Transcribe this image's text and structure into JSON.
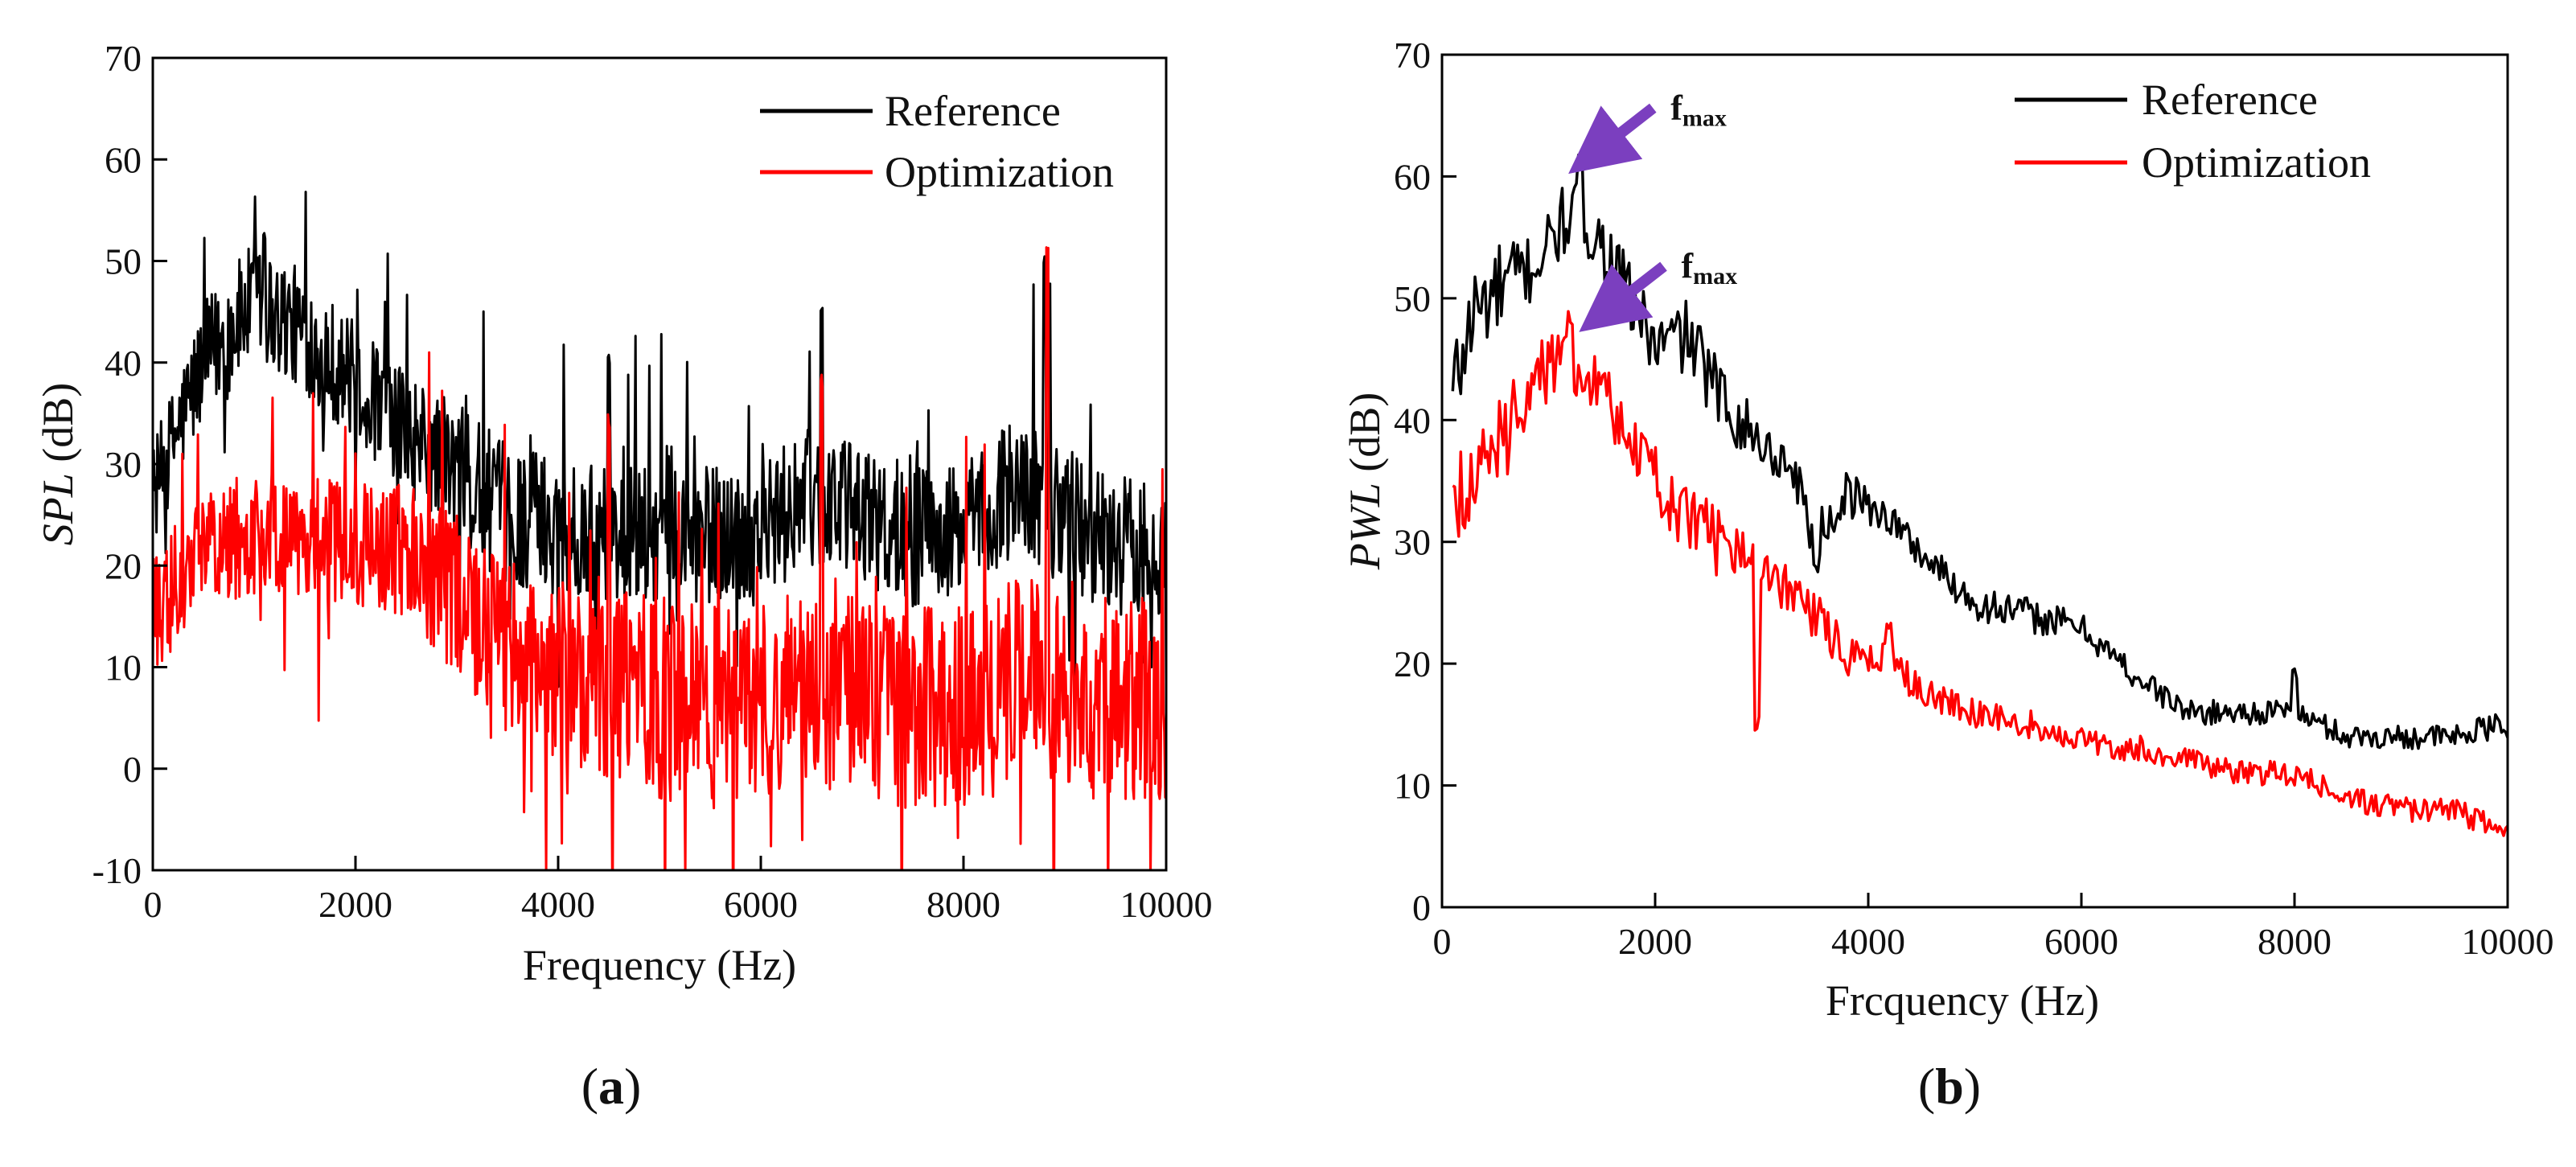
{
  "panels": [
    {
      "label_open": "(",
      "label_letter": "a",
      "label_close": ")"
    },
    {
      "label_open": "(",
      "label_letter": "b",
      "label_close": ")"
    }
  ],
  "chart_data": [
    {
      "type": "line",
      "title": "",
      "xlabel": "Frequency (Hz)",
      "ylabel_var": "SPL",
      "ylabel_unit": " (dB)",
      "xlim": [
        0,
        10000
      ],
      "ylim": [
        -10,
        70
      ],
      "xticks": [
        0,
        2000,
        4000,
        6000,
        8000,
        10000
      ],
      "yticks": [
        -10,
        0,
        10,
        20,
        30,
        40,
        50,
        60,
        70
      ],
      "grid": false,
      "legend_position": "top-right",
      "series": [
        {
          "name": "Reference",
          "color": "#000000",
          "style": "noisy",
          "x": [
            0,
            500,
            1000,
            1500,
            2000,
            2500,
            3000,
            3500,
            4000,
            4500,
            5000,
            5500,
            6000,
            6500,
            7000,
            7500,
            8000,
            8500,
            9000,
            9500,
            10000
          ],
          "y": [
            27,
            40,
            46,
            43,
            38,
            33,
            29,
            25,
            24,
            23,
            23,
            23,
            23,
            27,
            25,
            23,
            23,
            28,
            25,
            22,
            22
          ],
          "amplitude": [
            5,
            6,
            6,
            6,
            6,
            6,
            7,
            7,
            7,
            7,
            7,
            7,
            7,
            7,
            7,
            7,
            7,
            7,
            7,
            7,
            7
          ],
          "peaks": [
            [
              1100,
              53
            ],
            [
              4500,
              41
            ],
            [
              6600,
              46
            ],
            [
              8800,
              51
            ],
            [
              8850,
              48
            ]
          ]
        },
        {
          "name": "Optimization",
          "color": "#ff0000",
          "style": "noisy",
          "x": [
            0,
            500,
            1000,
            1500,
            2000,
            2500,
            3000,
            3500,
            4000,
            4500,
            5000,
            5500,
            6000,
            6500,
            7000,
            7500,
            8000,
            8500,
            9000,
            9500,
            10000
          ],
          "y": [
            15,
            22,
            23,
            23,
            22,
            21,
            17,
            12,
            10,
            9,
            7,
            6,
            6,
            8,
            7,
            6,
            6,
            9,
            7,
            7,
            7
          ],
          "amplitude": [
            6,
            6,
            6,
            6,
            6,
            7,
            8,
            9,
            9,
            10,
            10,
            10,
            10,
            10,
            10,
            10,
            10,
            10,
            10,
            10,
            10
          ],
          "peaks": [
            [
              6600,
              39
            ],
            [
              8830,
              52
            ],
            [
              4500,
              35
            ]
          ]
        }
      ]
    },
    {
      "type": "line",
      "title": "",
      "xlabel": "Frcquency (Hz)",
      "ylabel_var": "PWL",
      "ylabel_unit": " (dB)",
      "xlim": [
        0,
        10000
      ],
      "ylim": [
        0,
        70
      ],
      "xticks": [
        0,
        2000,
        4000,
        6000,
        8000,
        10000
      ],
      "yticks": [
        0,
        10,
        20,
        30,
        40,
        50,
        60,
        70
      ],
      "grid": false,
      "legend_position": "top-right",
      "annotations": [
        {
          "text_main": "f",
          "text_sub": "max",
          "x": 1300,
          "y": 61,
          "arrow_color": "#7b3fbf"
        },
        {
          "text_main": "f",
          "text_sub": "max",
          "x": 1400,
          "y": 48,
          "arrow_color": "#7b3fbf"
        }
      ],
      "series": [
        {
          "name": "Reference",
          "color": "#000000",
          "style": "noisy",
          "x": [
            100,
            300,
            600,
            900,
            1200,
            1400,
            1700,
            2000,
            2300,
            2600,
            3000,
            3300,
            3500,
            3800,
            4200,
            4500,
            5000,
            5500,
            6000,
            6500,
            7000,
            7500,
            8000,
            8500,
            9000,
            9500,
            10000
          ],
          "y": [
            42,
            49,
            51,
            53,
            57,
            56,
            51,
            46,
            47,
            42,
            38,
            36,
            30,
            34,
            32,
            29,
            25,
            24,
            23,
            19,
            16,
            16,
            16,
            14,
            14,
            14,
            15
          ],
          "amplitude": [
            5,
            4,
            4,
            3,
            3,
            3,
            3,
            3,
            3,
            3,
            2,
            2,
            2,
            2,
            1.5,
            1.5,
            1.5,
            1.5,
            1.2,
            1.2,
            1,
            1,
            1,
            1,
            1,
            1,
            1.2
          ],
          "peaks": [
            [
              1300,
              62
            ],
            [
              8000,
              20
            ],
            [
              3500,
              29
            ]
          ]
        },
        {
          "name": "Optimization",
          "color": "#ff0000",
          "style": "noisy",
          "x": [
            100,
            300,
            600,
            900,
            1200,
            1400,
            1700,
            2000,
            2300,
            2600,
            3000,
            3300,
            3500,
            3800,
            4200,
            4500,
            5000,
            5500,
            6000,
            6500,
            7000,
            7500,
            8000,
            8500,
            9000,
            9500,
            10000
          ],
          "y": [
            34,
            35,
            39,
            44,
            44,
            44,
            39,
            35,
            32,
            30,
            27,
            26,
            24,
            21,
            20,
            18,
            16,
            15,
            14,
            13,
            12,
            11,
            11,
            9,
            8,
            8,
            6
          ],
          "amplitude": [
            4,
            4,
            4,
            3,
            3,
            3,
            3,
            3,
            3,
            3,
            2,
            2,
            2,
            2,
            1.5,
            1.5,
            1.2,
            1.2,
            1.2,
            1.2,
            1,
            1,
            1,
            1,
            1,
            1,
            1
          ],
          "peaks": [
            [
              1200,
              49
            ],
            [
              2950,
              16
            ],
            [
              4200,
              24
            ]
          ]
        }
      ]
    }
  ]
}
